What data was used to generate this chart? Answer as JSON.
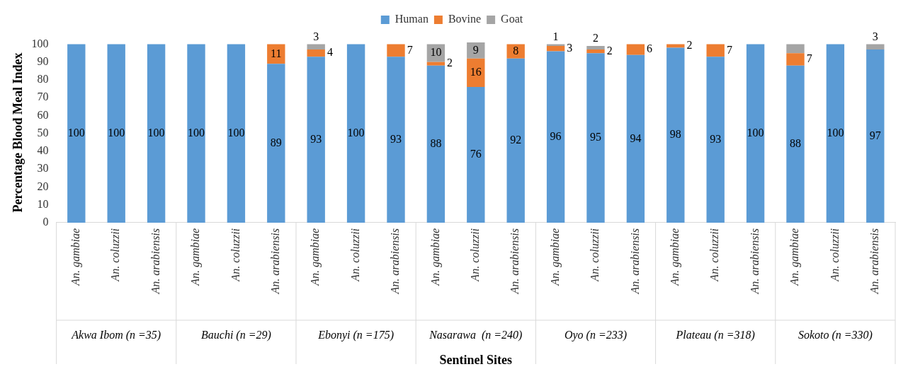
{
  "chart_data": {
    "type": "bar",
    "stacked": true,
    "xlabel": "Sentinel Sites",
    "ylabel": "Percentage Blood Meal Index",
    "categories": [
      "An. gambiae",
      "An. coluzzii",
      "An. arabiensis",
      "An. gambiae",
      "An. coluzzii",
      "An. arabiensis",
      "An. gambiae",
      "An. coluzzii",
      "An. arabiensis",
      "An. gambiae",
      "An. coluzzii",
      "An. arabiensis",
      "An. gambiae",
      "An. coluzzii",
      "An. arabiensis",
      "An. gambiae",
      "An. coluzzii",
      "An. arabiensis",
      "An. gambiae",
      "An. coluzzii",
      "An. arabiensis"
    ],
    "annotations": [
      "Akwa Ibom (n =35)",
      "Bauchi (n =29)",
      "Ebonyi (n =175)",
      "Nasarawa  (n =240)",
      "Oyo (n =233)",
      "Plateau (n =318)",
      "Sokoto (n =330)"
    ],
    "series": [
      {
        "name": "Human",
        "color": "#5b9bd5",
        "values": [
          100,
          100,
          100,
          100,
          100,
          89,
          93,
          100,
          93,
          88,
          76,
          92,
          96,
          95,
          94,
          98,
          93,
          100,
          88,
          100,
          97
        ],
        "value_labels": [
          "100",
          "100",
          "100",
          "100",
          "100",
          "89",
          "93",
          "100",
          "93",
          "88",
          "76",
          "92",
          "96",
          "95",
          "94",
          "98",
          "93",
          "100",
          "88",
          "100",
          "97"
        ]
      },
      {
        "name": "Bovine",
        "color": "#ed7d31",
        "values": [
          0,
          0,
          0,
          0,
          0,
          11,
          4,
          0,
          7,
          2,
          16,
          8,
          3,
          2,
          6,
          2,
          7,
          0,
          7,
          0,
          0
        ],
        "value_labels": [
          null,
          null,
          null,
          null,
          null,
          "11",
          "4",
          null,
          "7",
          "2",
          "16",
          "8",
          "3",
          "2",
          "6",
          "2",
          "7",
          null,
          "7",
          null,
          null
        ]
      },
      {
        "name": "Goat",
        "color": "#a5a5a5",
        "values": [
          0,
          0,
          0,
          0,
          0,
          0,
          3,
          0,
          0,
          10,
          9,
          0,
          1,
          2,
          0,
          0,
          0,
          0,
          5,
          0,
          3
        ],
        "value_labels": [
          null,
          null,
          null,
          null,
          null,
          null,
          "3",
          null,
          null,
          "10",
          "9",
          null,
          "1",
          "2",
          null,
          null,
          null,
          null,
          null,
          null,
          "3"
        ]
      }
    ],
    "ylim": [
      0,
      101
    ],
    "yticks": [
      0,
      10,
      20,
      30,
      40,
      50,
      60,
      70,
      80,
      90,
      100
    ],
    "grid": false,
    "legend": "top"
  }
}
